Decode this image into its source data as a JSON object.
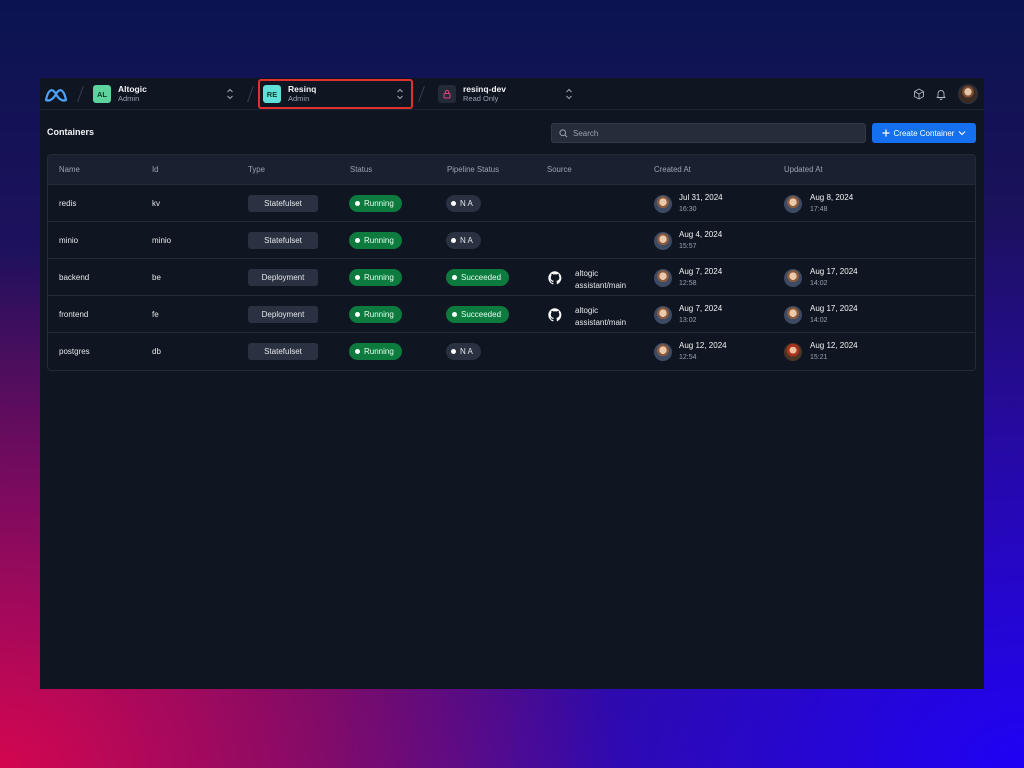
{
  "topbar": {
    "orgs": [
      {
        "initials": "AL",
        "name": "Altogic",
        "role": "Admin",
        "color": "#5dd39e"
      },
      {
        "initials": "RE",
        "name": "Resinq",
        "role": "Admin",
        "color": "#5fe0d8"
      }
    ],
    "environment": {
      "name": "resinq-dev",
      "role": "Read Only",
      "icon": "lock-icon"
    },
    "icons": [
      "cube-icon",
      "bell-icon",
      "avatar"
    ]
  },
  "page": {
    "title": "Containers",
    "search_placeholder": "Search",
    "create_label": "Create Container"
  },
  "table": {
    "columns": [
      "Name",
      "Id",
      "Type",
      "Status",
      "Pipeline Status",
      "Source",
      "Created At",
      "Updated At"
    ],
    "rows": [
      {
        "name": "redis",
        "id": "kv",
        "type": "Statefulset",
        "status": "Running",
        "pipeline": "N A",
        "source": "",
        "source_repo": "",
        "created_date": "Jul 31, 2024",
        "created_time": "16:30",
        "updated_date": "Aug 8, 2024",
        "updated_time": "17:48"
      },
      {
        "name": "minio",
        "id": "minio",
        "type": "Statefulset",
        "status": "Running",
        "pipeline": "N A",
        "source": "",
        "source_repo": "",
        "created_date": "Aug 4, 2024",
        "created_time": "15:57",
        "updated_date": "",
        "updated_time": ""
      },
      {
        "name": "backend",
        "id": "be",
        "type": "Deployment",
        "status": "Running",
        "pipeline": "Succeeded",
        "source": "altogic",
        "source_repo": "assistant/main",
        "created_date": "Aug 7, 2024",
        "created_time": "12:58",
        "updated_date": "Aug 17, 2024",
        "updated_time": "14:02"
      },
      {
        "name": "frontend",
        "id": "fe",
        "type": "Deployment",
        "status": "Running",
        "pipeline": "Succeeded",
        "source": "altogic",
        "source_repo": "assistant/main",
        "created_date": "Aug 7, 2024",
        "created_time": "13:02",
        "updated_date": "Aug 17, 2024",
        "updated_time": "14:02"
      },
      {
        "name": "postgres",
        "id": "db",
        "type": "Statefulset",
        "status": "Running",
        "pipeline": "N A",
        "source": "",
        "source_repo": "",
        "created_date": "Aug 12, 2024",
        "created_time": "12:54",
        "updated_date": "Aug 12, 2024",
        "updated_time": "15:21"
      }
    ]
  },
  "colors": {
    "accent": "#1570ef",
    "success": "#0d7a3e",
    "highlight_border": "#e03131"
  }
}
